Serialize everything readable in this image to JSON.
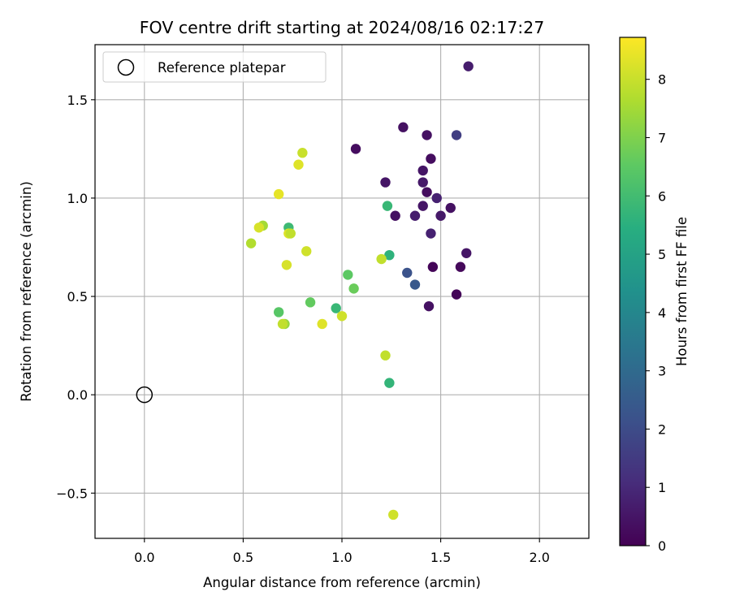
{
  "chart_data": {
    "type": "scatter",
    "title": "FOV centre drift starting at 2024/08/16 02:17:27",
    "xlabel": "Angular distance from reference (arcmin)",
    "ylabel": "Rotation from reference (arcmin)",
    "xlim": [
      -0.25,
      2.25
    ],
    "ylim": [
      -0.73,
      1.78
    ],
    "xticks": [
      0.0,
      0.5,
      1.0,
      1.5,
      2.0
    ],
    "xtick_labels": [
      "0.0",
      "0.5",
      "1.0",
      "1.5",
      "2.0"
    ],
    "yticks": [
      -0.5,
      0.0,
      0.5,
      1.0,
      1.5
    ],
    "ytick_labels": [
      "−0.5",
      "0.0",
      "0.5",
      "1.0",
      "1.5"
    ],
    "grid": true,
    "colormap": "viridis",
    "colorbar": {
      "label": "Hours from first FF file",
      "range": [
        0,
        8.72
      ],
      "ticks": [
        0,
        1,
        2,
        3,
        4,
        5,
        6,
        7,
        8
      ],
      "tick_labels": [
        "0",
        "1",
        "2",
        "3",
        "4",
        "5",
        "6",
        "7",
        "8"
      ]
    },
    "legend": {
      "placement": "top-left",
      "entries": [
        {
          "label": "Reference platepar",
          "marker": "open-circle"
        }
      ]
    },
    "reference_point": {
      "x": 0.0,
      "y": 0.0,
      "label": "Reference platepar"
    },
    "points": [
      {
        "x": 1.64,
        "y": 1.67,
        "h": 0.7
      },
      {
        "x": 1.31,
        "y": 1.36,
        "h": 0.4
      },
      {
        "x": 1.58,
        "y": 1.32,
        "h": 1.6
      },
      {
        "x": 1.43,
        "y": 1.32,
        "h": 0.4
      },
      {
        "x": 1.07,
        "y": 1.25,
        "h": 0.3
      },
      {
        "x": 1.45,
        "y": 1.2,
        "h": 0.3
      },
      {
        "x": 1.41,
        "y": 1.14,
        "h": 0.5
      },
      {
        "x": 1.41,
        "y": 1.08,
        "h": 0.6
      },
      {
        "x": 1.22,
        "y": 1.08,
        "h": 0.5
      },
      {
        "x": 1.43,
        "y": 1.03,
        "h": 0.3
      },
      {
        "x": 1.48,
        "y": 1.0,
        "h": 0.8
      },
      {
        "x": 1.23,
        "y": 0.96,
        "h": 5.8
      },
      {
        "x": 1.41,
        "y": 0.96,
        "h": 0.5
      },
      {
        "x": 1.55,
        "y": 0.95,
        "h": 0.4
      },
      {
        "x": 1.37,
        "y": 0.91,
        "h": 0.7
      },
      {
        "x": 1.5,
        "y": 0.91,
        "h": 0.6
      },
      {
        "x": 1.27,
        "y": 0.91,
        "h": 0.4
      },
      {
        "x": 1.45,
        "y": 0.82,
        "h": 0.8
      },
      {
        "x": 1.63,
        "y": 0.72,
        "h": 0.5
      },
      {
        "x": 1.24,
        "y": 0.71,
        "h": 5.6
      },
      {
        "x": 1.46,
        "y": 0.65,
        "h": 0.1
      },
      {
        "x": 1.6,
        "y": 0.65,
        "h": 0.2
      },
      {
        "x": 1.33,
        "y": 0.62,
        "h": 2.2
      },
      {
        "x": 1.37,
        "y": 0.56,
        "h": 2.4
      },
      {
        "x": 1.58,
        "y": 0.51,
        "h": 0.1
      },
      {
        "x": 1.44,
        "y": 0.45,
        "h": 0.4
      },
      {
        "x": 1.24,
        "y": 0.06,
        "h": 5.7
      },
      {
        "x": 1.26,
        "y": -0.61,
        "h": 8.1
      },
      {
        "x": 1.22,
        "y": 0.2,
        "h": 7.9
      },
      {
        "x": 1.2,
        "y": 0.69,
        "h": 7.9
      },
      {
        "x": 0.8,
        "y": 1.23,
        "h": 8.0
      },
      {
        "x": 0.78,
        "y": 1.17,
        "h": 8.3
      },
      {
        "x": 0.68,
        "y": 1.02,
        "h": 8.4
      },
      {
        "x": 0.6,
        "y": 0.86,
        "h": 7.5
      },
      {
        "x": 0.58,
        "y": 0.85,
        "h": 8.2
      },
      {
        "x": 0.73,
        "y": 0.85,
        "h": 5.9
      },
      {
        "x": 0.73,
        "y": 0.82,
        "h": 8.3
      },
      {
        "x": 0.74,
        "y": 0.82,
        "h": 7.9
      },
      {
        "x": 0.54,
        "y": 0.77,
        "h": 7.7
      },
      {
        "x": 0.82,
        "y": 0.73,
        "h": 8.1
      },
      {
        "x": 0.72,
        "y": 0.66,
        "h": 8.2
      },
      {
        "x": 1.03,
        "y": 0.61,
        "h": 6.5
      },
      {
        "x": 1.06,
        "y": 0.54,
        "h": 6.7
      },
      {
        "x": 0.84,
        "y": 0.47,
        "h": 6.6
      },
      {
        "x": 0.97,
        "y": 0.44,
        "h": 5.8
      },
      {
        "x": 0.68,
        "y": 0.42,
        "h": 6.4
      },
      {
        "x": 1.0,
        "y": 0.4,
        "h": 8.1
      },
      {
        "x": 0.9,
        "y": 0.36,
        "h": 8.3
      },
      {
        "x": 0.71,
        "y": 0.36,
        "h": 7.3
      },
      {
        "x": 0.7,
        "y": 0.36,
        "h": 7.9
      }
    ]
  }
}
